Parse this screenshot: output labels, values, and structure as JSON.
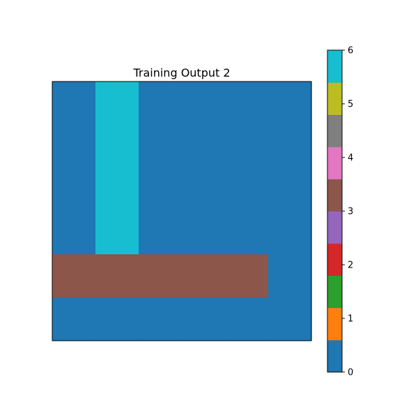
{
  "chart_data": {
    "type": "heatmap",
    "title": "Training Output 2",
    "xlabel": "",
    "ylabel": "",
    "grid": [
      [
        0,
        6,
        0,
        0,
        0,
        0
      ],
      [
        0,
        6,
        0,
        0,
        0,
        0
      ],
      [
        0,
        6,
        0,
        0,
        0,
        0
      ],
      [
        0,
        6,
        0,
        0,
        0,
        0
      ],
      [
        3,
        3,
        3,
        3,
        3,
        0
      ],
      [
        0,
        0,
        0,
        0,
        0,
        0
      ]
    ],
    "colorbar": {
      "vmin": 0,
      "vmax": 6,
      "ticks": [
        "0",
        "1",
        "2",
        "3",
        "4",
        "5",
        "6"
      ],
      "colors": [
        "#1f77b4",
        "#ff7f0e",
        "#2ca02c",
        "#d62728",
        "#9467bd",
        "#8c564b",
        "#e377c2",
        "#7f7f7f",
        "#bcbd22",
        "#17becf"
      ]
    },
    "grid_lines": false
  }
}
